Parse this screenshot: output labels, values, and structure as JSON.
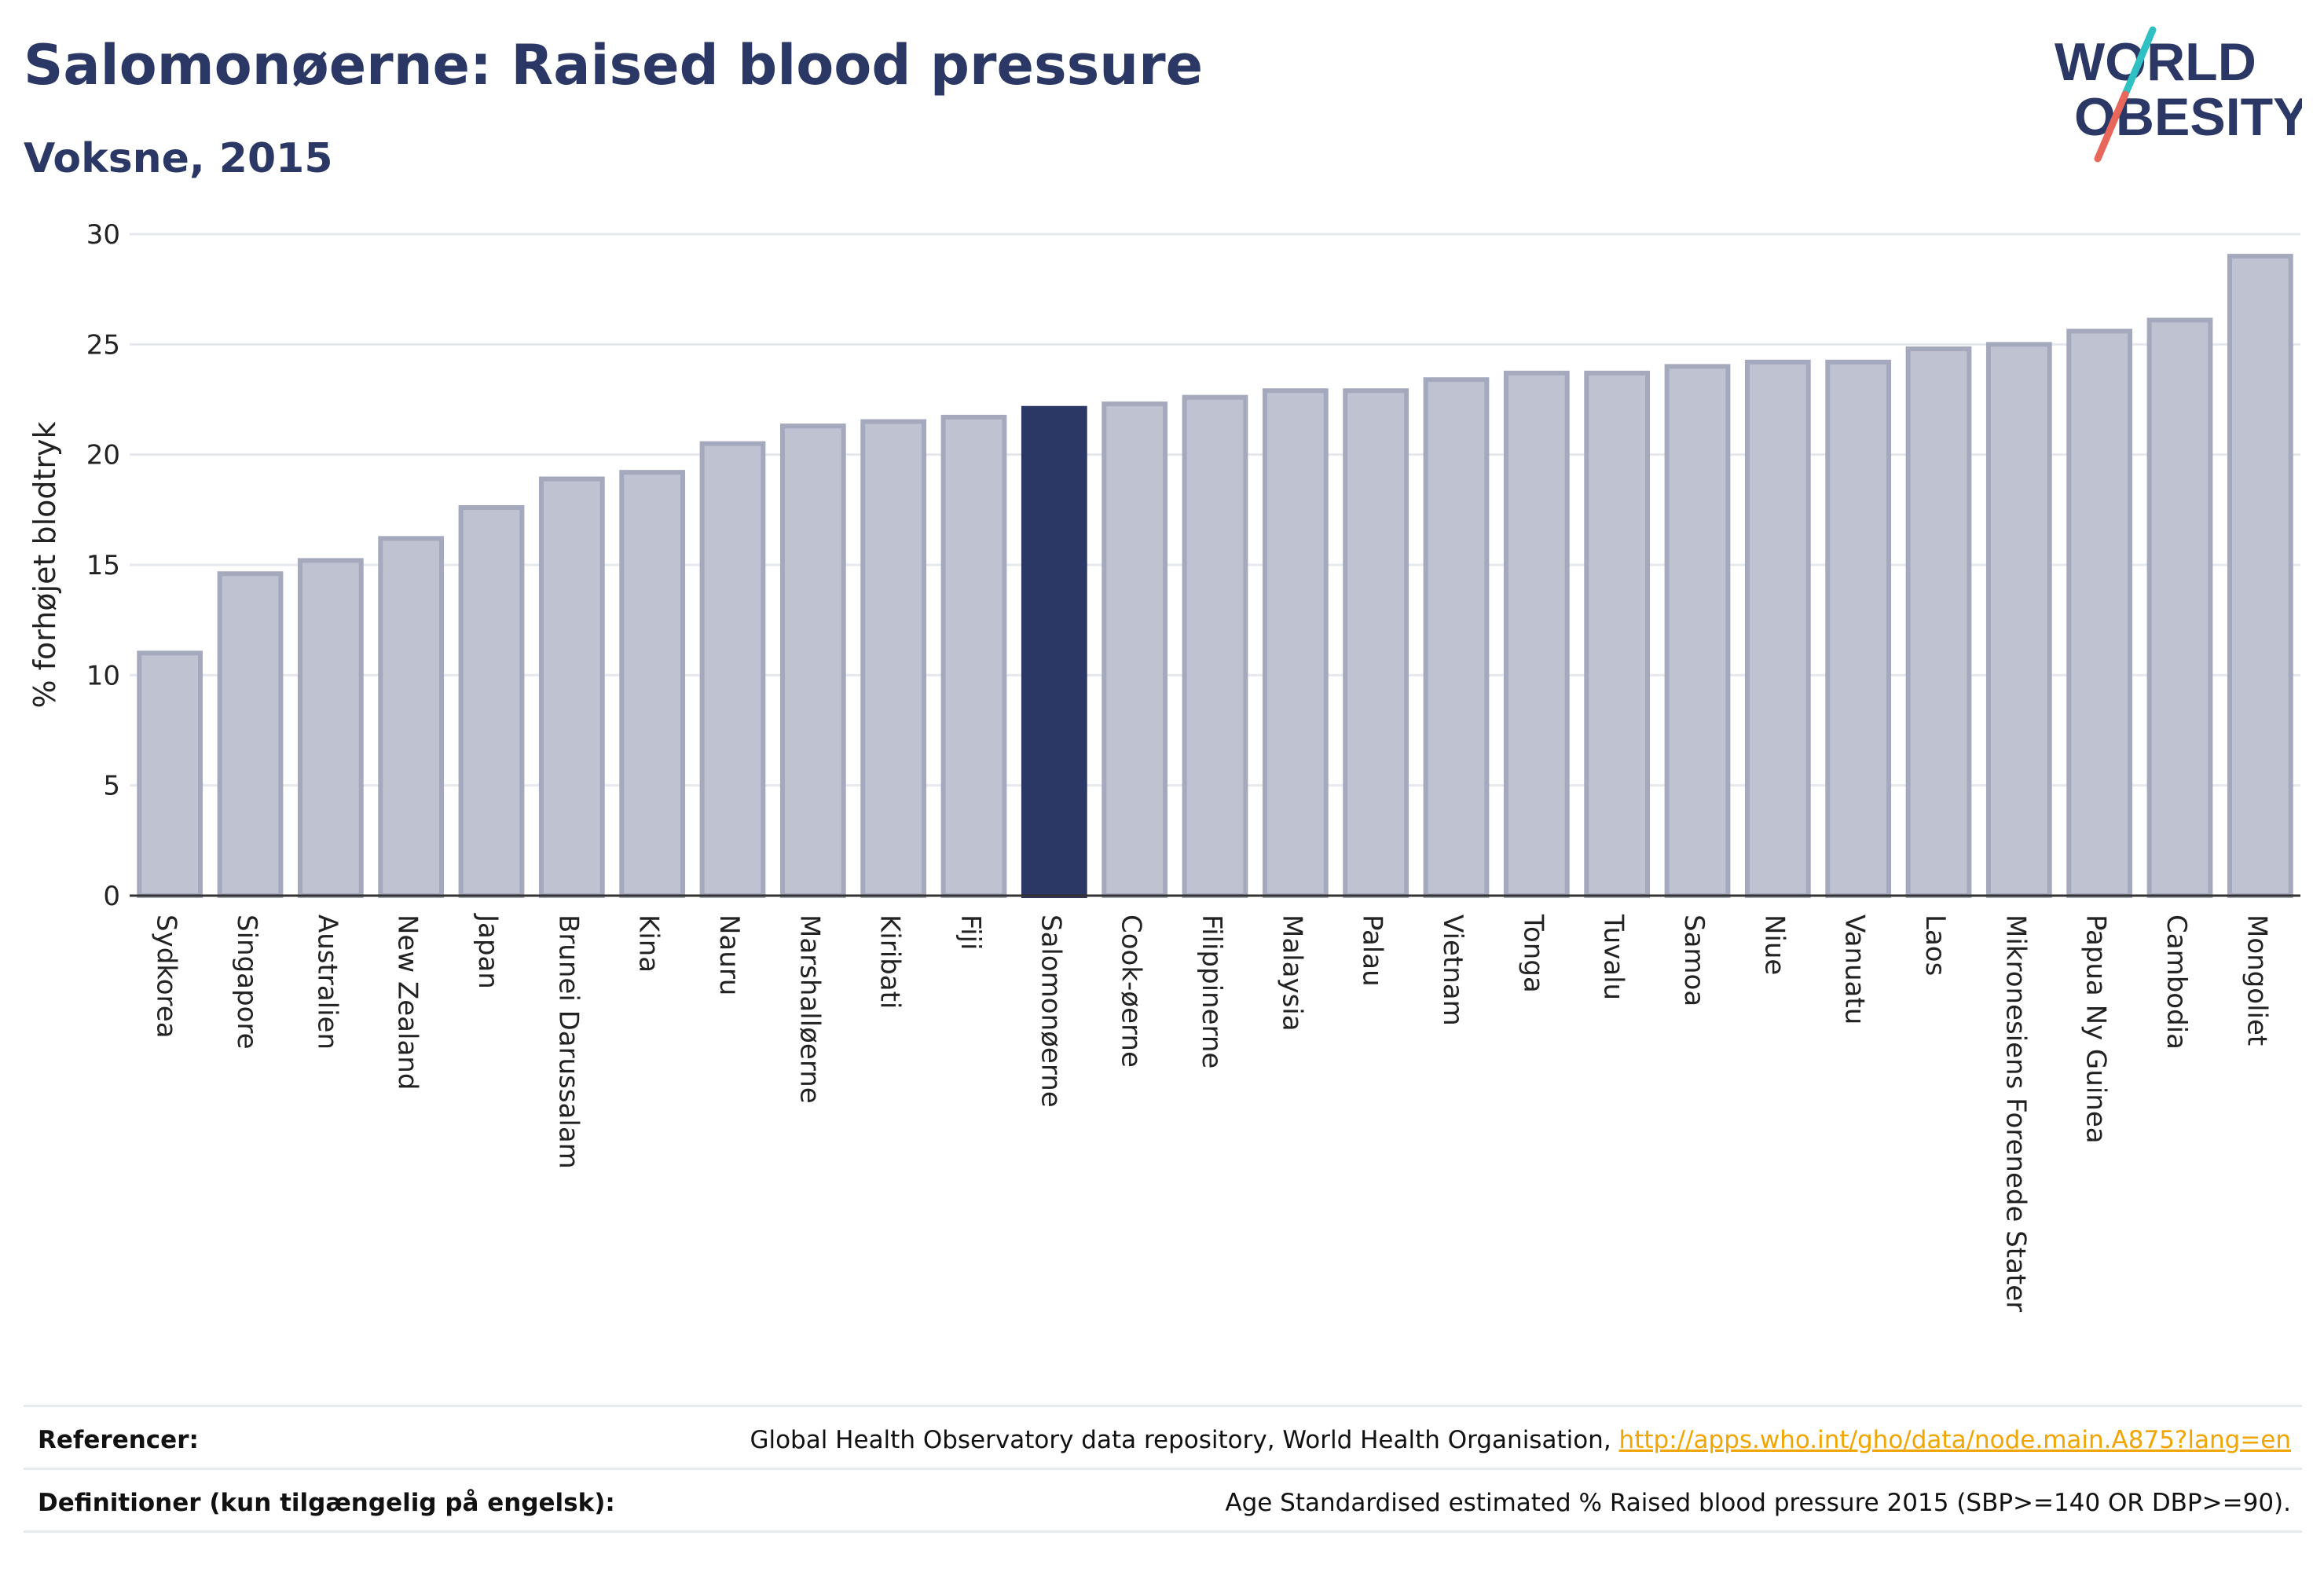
{
  "header": {
    "title": "Salomonøerne: Raised blood pressure",
    "subtitle": "Voksne, 2015"
  },
  "logo": {
    "line1": "WORLD",
    "line2": "OBESITY",
    "slash_color_top": "#2fc0c4",
    "slash_color_bottom": "#e8675a",
    "text_color": "#2b3866"
  },
  "colors": {
    "bar": "#bfc2d1",
    "bar_edge": "#a4a9be",
    "highlight": "#2b3866",
    "text": "#2b3866"
  },
  "chart_data": {
    "type": "bar",
    "title": "Salomonøerne: Raised blood pressure",
    "subtitle": "Voksne, 2015",
    "xlabel": "",
    "ylabel": "% forhøjet blodtryk",
    "ylim": [
      0,
      30
    ],
    "yticks": [
      0,
      5,
      10,
      15,
      20,
      25,
      30
    ],
    "grid": true,
    "highlight": "Salomonøerne",
    "categories": [
      "Sydkorea",
      "Singapore",
      "Australien",
      "New Zealand",
      "Japan",
      "Brunei Darussalam",
      "Kina",
      "Nauru",
      "Marshalløerne",
      "Kiribati",
      "Fiji",
      "Salomonøerne",
      "Cook-øerne",
      "Filippinerne",
      "Malaysia",
      "Palau",
      "Vietnam",
      "Tonga",
      "Tuvalu",
      "Samoa",
      "Niue",
      "Vanuatu",
      "Laos",
      "Mikronesiens Forenede Stater",
      "Papua Ny Guinea",
      "Cambodia",
      "Mongoliet"
    ],
    "values": [
      11.0,
      14.6,
      15.2,
      16.2,
      17.6,
      18.9,
      19.2,
      20.5,
      21.3,
      21.5,
      21.7,
      22.1,
      22.3,
      22.6,
      22.9,
      22.9,
      23.4,
      23.7,
      23.7,
      24.0,
      24.2,
      24.2,
      24.8,
      25.0,
      25.6,
      26.1,
      29.0
    ]
  },
  "footer": {
    "references_label": "Referencer:",
    "references_text": "Global Health Observatory data repository, World Health Organisation, ",
    "references_link": "http://apps.who.int/gho/data/node.main.A875?lang=en",
    "definitions_label": "Definitioner (kun tilgængelig på engelsk):",
    "definitions_text": "Age Standardised estimated % Raised blood pressure 2015 (SBP>=140 OR DBP>=90)."
  }
}
